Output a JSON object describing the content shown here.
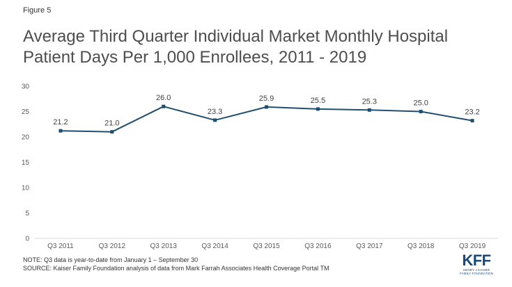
{
  "figure_label": "Figure 5",
  "title": "Average Third Quarter Individual Market Monthly Hospital Patient Days Per 1,000 Enrollees, 2011 - 2019",
  "note": "NOTE: Q3 data is year-to-date from January 1 – September 30",
  "source": "SOURCE: Kaiser Family Foundation analysis of data from Mark Farrah Associates Health Coverage Portal TM",
  "logo": {
    "mark": "KFF",
    "line1": "HENRY J KAISER",
    "line2": "FAMILY FOUNDATION"
  },
  "colors": {
    "line": "#1f4e6e",
    "axis": "#d9d9d9",
    "brand": "#1b4a7a"
  },
  "chart_data": {
    "type": "line",
    "categories": [
      "Q3 2011",
      "Q3 2012",
      "Q3 2013",
      "Q3 2014",
      "Q3 2015",
      "Q3 2016",
      "Q3 2017",
      "Q3 2018",
      "Q3 2019"
    ],
    "series": [
      {
        "values": [
          21.2,
          21.0,
          26.0,
          23.3,
          25.9,
          25.5,
          25.3,
          25.0,
          23.2
        ],
        "data_labels": [
          "21.2",
          "21.0",
          "26.0",
          "23.3",
          "25.9",
          "25.5",
          "25.3",
          "25.0",
          "23.2"
        ]
      }
    ],
    "ylim": [
      0,
      30
    ],
    "yticks": [
      "0",
      "5",
      "10",
      "15",
      "20",
      "25",
      "30"
    ],
    "grid": false,
    "markers": "square"
  }
}
